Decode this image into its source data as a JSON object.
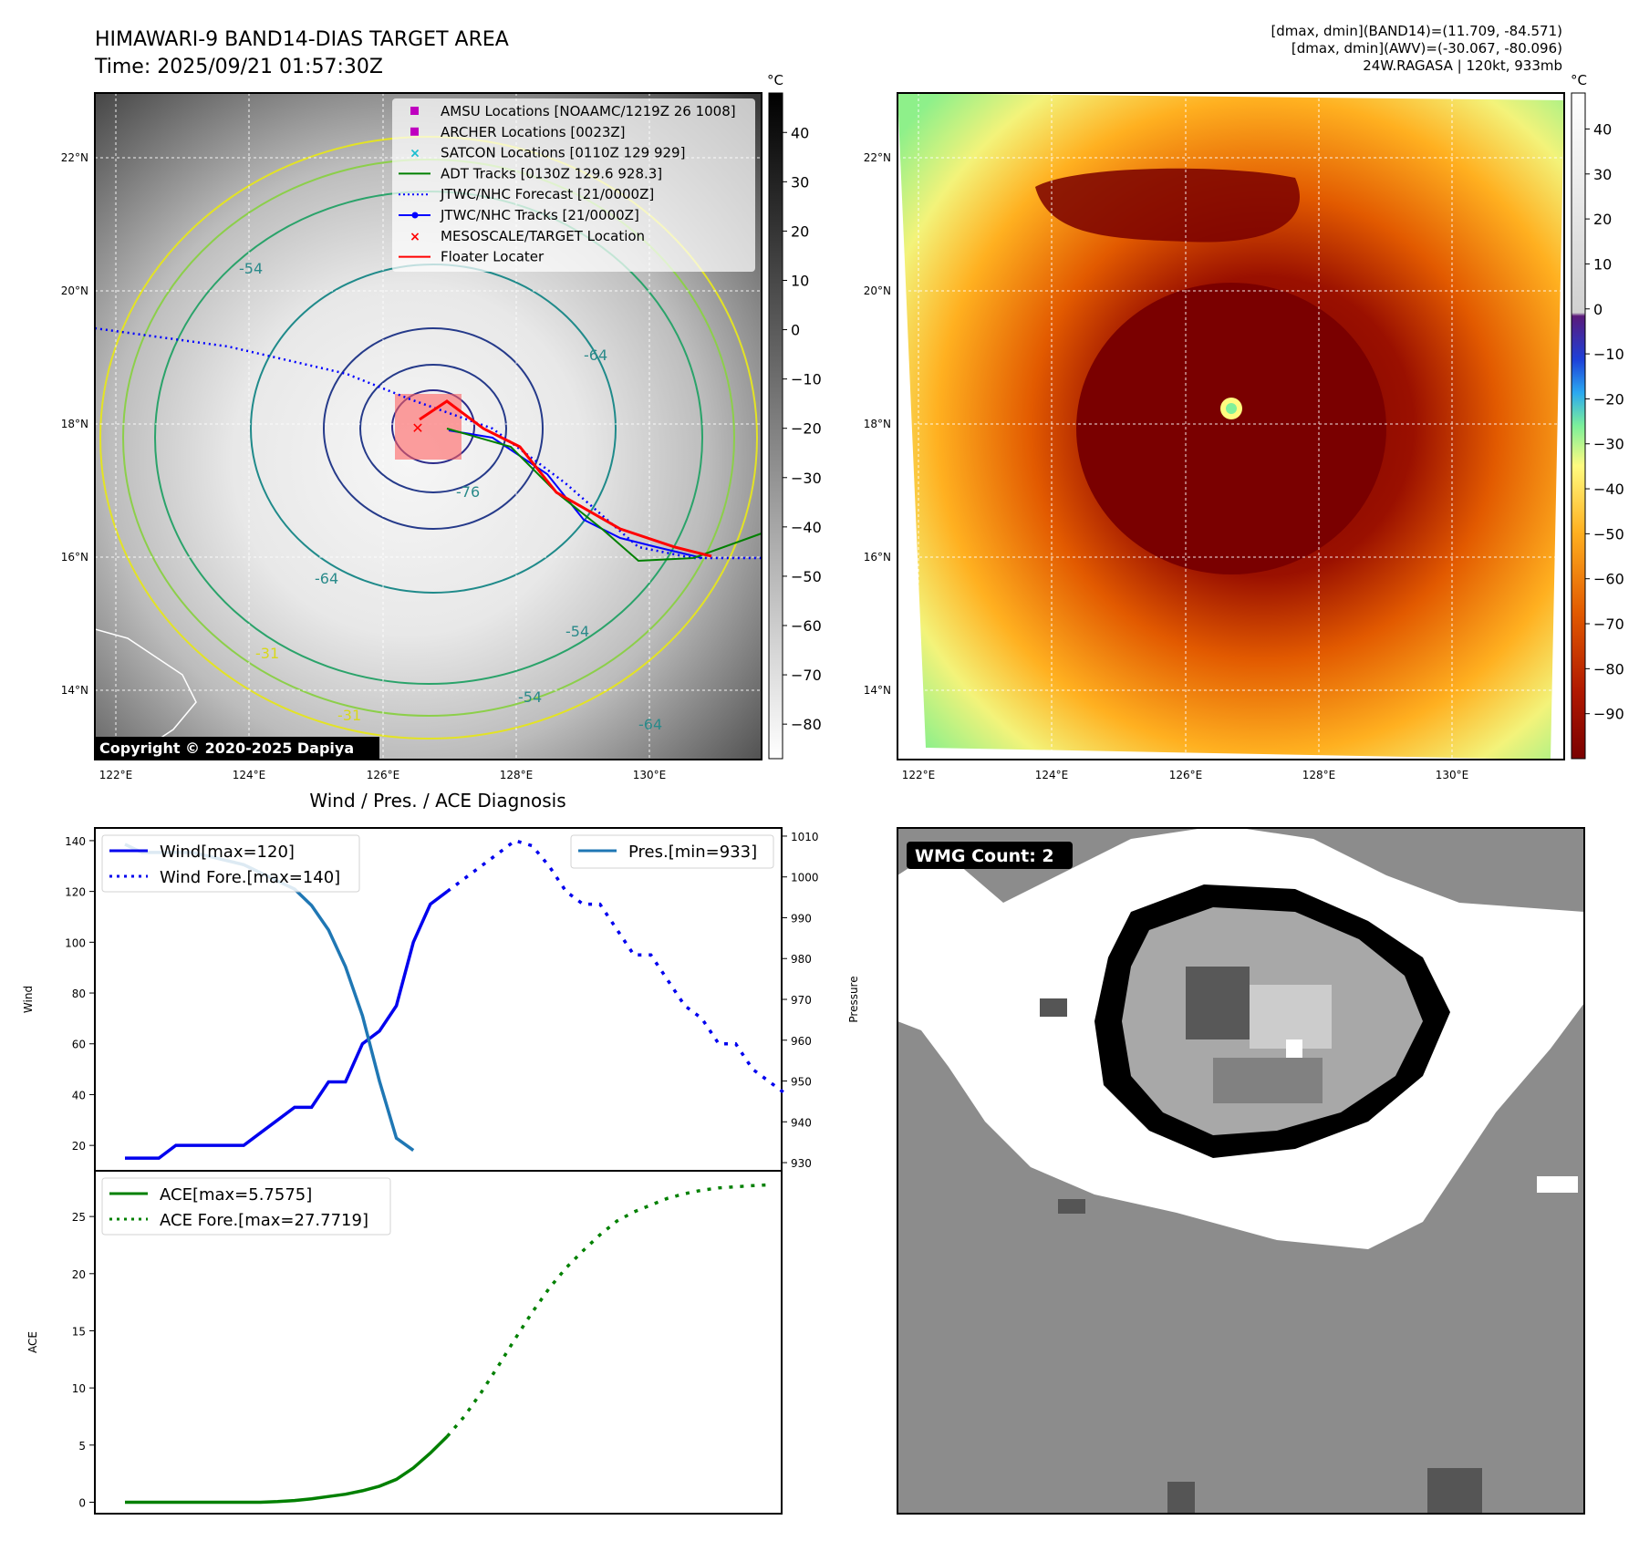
{
  "header": {
    "title_line1": "HIMAWARI-9 BAND14-DIAS TARGET AREA",
    "title_line2": "Time: 2025/09/21 01:57:30Z",
    "info_line1": "[dmax, dmin](BAND14)=(11.709, -84.571)",
    "info_line2": "[dmax, dmin](AWV)=(-30.067, -80.096)",
    "info_line3": "24W.RAGASA | 120kt, 933mb"
  },
  "map_ticks": {
    "lon": [
      "122°E",
      "124°E",
      "126°E",
      "128°E",
      "130°E"
    ],
    "lat": [
      "22°N",
      "20°N",
      "18°N",
      "16°N",
      "14°N"
    ]
  },
  "ir_map": {
    "copyright": "Copyright © 2020-2025 Dapiya",
    "colorbar_unit": "°C",
    "colorbar_ticks": [
      "40",
      "30",
      "20",
      "10",
      "0",
      "−10",
      "−20",
      "−30",
      "−40",
      "−50",
      "−60",
      "−70",
      "−80"
    ],
    "legend": [
      {
        "label": "AMSU Locations [NOAAMC/1219Z 26 1008]",
        "color": "#bf00bf",
        "marker": "square"
      },
      {
        "label": "ARCHER Locations [0023Z]",
        "color": "#bf00bf",
        "marker": "square"
      },
      {
        "label": "SATCON Locations [0110Z 129 929]",
        "color": "#17becf",
        "marker": "x"
      },
      {
        "label": "ADT Tracks [0130Z 129.6 928.3]",
        "color": "#008000",
        "marker": "line"
      },
      {
        "label": "JTWC/NHC Forecast [21/0000Z]",
        "color": "#0000ff",
        "marker": "dotted"
      },
      {
        "label": "JTWC/NHC Tracks [21/0000Z]",
        "color": "#0000ff",
        "marker": "dotline"
      },
      {
        "label": "MESOSCALE/TARGET Location",
        "color": "#ff0000",
        "marker": "x"
      },
      {
        "label": "Floater Locater",
        "color": "#ff0000",
        "marker": "line"
      }
    ],
    "contour_labels": [
      "-76",
      "-64",
      "-54",
      "-64",
      "-54",
      "-54",
      "-64",
      "-31",
      "-31"
    ]
  },
  "awv_map": {
    "colorbar_unit": "°C",
    "colorbar_ticks": [
      "40",
      "30",
      "20",
      "10",
      "0",
      "−10",
      "−20",
      "−30",
      "−40",
      "−50",
      "−60",
      "−70",
      "−80",
      "−90"
    ]
  },
  "diagnosis": {
    "title": "Wind / Pres. / ACE Diagnosis",
    "wind_ylabel": "Wind",
    "pres_ylabel": "Pressure",
    "ace_ylabel": "ACE",
    "wind_ticks": [
      "140",
      "120",
      "100",
      "80",
      "60",
      "40",
      "20"
    ],
    "pres_ticks": [
      "1010",
      "1000",
      "990",
      "980",
      "970",
      "960",
      "950",
      "940",
      "930"
    ],
    "ace_ticks": [
      "25",
      "20",
      "15",
      "10",
      "5",
      "0"
    ],
    "legend_wind": "Wind[max=120]",
    "legend_wind_fore": "Wind Fore.[max=140]",
    "legend_pres": "Pres.[min=933]",
    "legend_ace": "ACE[max=5.7575]",
    "legend_ace_fore": "ACE Fore.[max=27.7719]"
  },
  "wmg": {
    "label": "WMG Count: 2"
  },
  "colors": {
    "wind": "#0000ee",
    "pressure": "#1f77b4",
    "ace": "#008000",
    "track_red": "#ff0000"
  },
  "chart_data": [
    {
      "type": "line",
      "panel": "wind",
      "x": [
        0,
        1,
        2,
        3,
        4,
        5,
        6,
        7,
        8,
        9,
        10,
        11,
        12,
        13,
        14,
        15,
        16,
        17,
        18,
        19,
        20
      ],
      "series": [
        {
          "name": "Wind[max=120]",
          "values": [
            15,
            15,
            15,
            20,
            20,
            20,
            20,
            20,
            25,
            30,
            35,
            35,
            45,
            45,
            60,
            65,
            75,
            100,
            115,
            120,
            null
          ]
        },
        {
          "name": "Wind Fore.[max=140]",
          "x": [
            19,
            20,
            21,
            22,
            23,
            24,
            25,
            26,
            27,
            28,
            29,
            30,
            31,
            32,
            33,
            34,
            35,
            36,
            37,
            38,
            39
          ],
          "values": [
            120,
            125,
            130,
            135,
            140,
            138,
            130,
            120,
            115,
            115,
            105,
            95,
            95,
            85,
            75,
            70,
            60,
            60,
            50,
            45,
            40
          ]
        }
      ],
      "ylim": [
        10,
        145
      ]
    },
    {
      "type": "line",
      "panel": "pressure",
      "series": [
        {
          "name": "Pres.[min=933]",
          "x": [
            0,
            1,
            2,
            3,
            4,
            5,
            6,
            7,
            8,
            9,
            10,
            11,
            12,
            13,
            14,
            15,
            16,
            17,
            18,
            19
          ],
          "values": [
            1008,
            1006,
            1006,
            1006,
            1006,
            1005,
            1004,
            1003,
            1001,
            999,
            997,
            993,
            987,
            978,
            966,
            950,
            936,
            933,
            null,
            null
          ]
        }
      ],
      "ylim": [
        928,
        1012
      ]
    },
    {
      "type": "line",
      "panel": "ace",
      "series": [
        {
          "name": "ACE[max=5.7575]",
          "x": [
            0,
            1,
            2,
            3,
            4,
            5,
            6,
            7,
            8,
            9,
            10,
            11,
            12,
            13,
            14,
            15,
            16,
            17,
            18,
            19
          ],
          "values": [
            0,
            0,
            0,
            0,
            0,
            0,
            0,
            0,
            0,
            0.05,
            0.15,
            0.3,
            0.5,
            0.7,
            1.0,
            1.4,
            2.0,
            3.0,
            4.3,
            5.7575
          ]
        },
        {
          "name": "ACE Fore.[max=27.7719]",
          "x": [
            19,
            20,
            21,
            22,
            23,
            24,
            25,
            26,
            27,
            28,
            29,
            30,
            31,
            32,
            33,
            34,
            35,
            36,
            37,
            38
          ],
          "values": [
            5.7575,
            7.5,
            9.6,
            11.9,
            14.3,
            16.6,
            18.7,
            20.5,
            22.0,
            23.4,
            24.6,
            25.4,
            26.0,
            26.6,
            27.0,
            27.3,
            27.5,
            27.6,
            27.7,
            27.7719
          ]
        }
      ],
      "ylim": [
        -1,
        29
      ]
    }
  ]
}
